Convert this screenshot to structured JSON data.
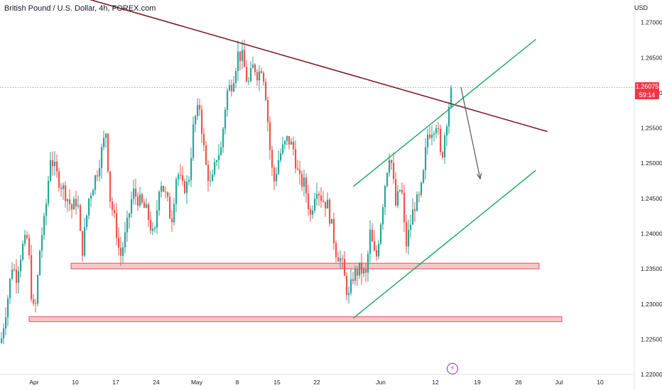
{
  "header": {
    "title": "British Pound / U.S. Dollar, 4h, FOREX.com",
    "currency": "USD"
  },
  "price_tag": {
    "price": "1.26075",
    "countdown": "59:14"
  },
  "events": {
    "icon": "lightning-bolt-icon",
    "glyph": "⚡"
  },
  "colors": {
    "up": "#26a69a",
    "down": "#ef5350",
    "trendline": "#7b1f2a",
    "channel": "#22ab6a",
    "support_fill": "#f7b3b8",
    "support_stroke": "#e5505c",
    "price_tag": "#f23645",
    "arrow": "#555555",
    "bolt": "#9c27b0"
  },
  "chart_data": {
    "type": "candlestick",
    "title": "British Pound / U.S. Dollar, 4h, FOREX.com",
    "y_unit": "USD",
    "ylim": [
      1.22,
      1.2725
    ],
    "y_ticks": [
      "1.27000",
      "1.26500",
      "1.26000",
      "1.25500",
      "1.25000",
      "1.24500",
      "1.24000",
      "1.23500",
      "1.23000",
      "1.22500",
      "1.22000"
    ],
    "x_ticks": [
      "Apr",
      "10",
      "17",
      "24",
      "May",
      "8",
      "15",
      "22",
      "Jun",
      "12",
      "19",
      "26",
      "Jul",
      "10"
    ],
    "current_price": 1.26075,
    "anchors": [
      [
        0,
        1.2245
      ],
      [
        10,
        1.231
      ],
      [
        16,
        1.2355
      ],
      [
        22,
        1.234
      ],
      [
        30,
        1.238
      ],
      [
        38,
        1.2395
      ],
      [
        44,
        1.23
      ],
      [
        48,
        1.2285
      ],
      [
        56,
        1.239
      ],
      [
        62,
        1.242
      ],
      [
        70,
        1.251
      ],
      [
        80,
        1.248
      ],
      [
        92,
        1.2455
      ],
      [
        100,
        1.2435
      ],
      [
        108,
        1.245
      ],
      [
        114,
        1.237
      ],
      [
        124,
        1.245
      ],
      [
        136,
        1.249
      ],
      [
        148,
        1.2545
      ],
      [
        154,
        1.245
      ],
      [
        162,
        1.241
      ],
      [
        168,
        1.2365
      ],
      [
        176,
        1.24
      ],
      [
        186,
        1.246
      ],
      [
        196,
        1.2445
      ],
      [
        206,
        1.243
      ],
      [
        216,
        1.239
      ],
      [
        224,
        1.248
      ],
      [
        236,
        1.244
      ],
      [
        240,
        1.2415
      ],
      [
        248,
        1.249
      ],
      [
        256,
        1.2465
      ],
      [
        264,
        1.247
      ],
      [
        272,
        1.256
      ],
      [
        280,
        1.258
      ],
      [
        288,
        1.25
      ],
      [
        296,
        1.2465
      ],
      [
        304,
        1.251
      ],
      [
        310,
        1.252
      ],
      [
        318,
        1.26
      ],
      [
        326,
        1.2615
      ],
      [
        334,
        1.2655
      ],
      [
        340,
        1.265
      ],
      [
        348,
        1.261
      ],
      [
        356,
        1.264
      ],
      [
        362,
        1.2625
      ],
      [
        368,
        1.264
      ],
      [
        374,
        1.259
      ],
      [
        378,
        1.253
      ],
      [
        384,
        1.247
      ],
      [
        392,
        1.251
      ],
      [
        404,
        1.2535
      ],
      [
        412,
        1.252
      ],
      [
        420,
        1.2475
      ],
      [
        428,
        1.247
      ],
      [
        436,
        1.2425
      ],
      [
        444,
        1.247
      ],
      [
        452,
        1.245
      ],
      [
        460,
        1.244
      ],
      [
        466,
        1.241
      ],
      [
        472,
        1.2375
      ],
      [
        480,
        1.236
      ],
      [
        486,
        1.2325
      ],
      [
        490,
        1.231
      ],
      [
        496,
        1.234
      ],
      [
        506,
        1.235
      ],
      [
        514,
        1.234
      ],
      [
        520,
        1.24
      ],
      [
        528,
        1.236
      ],
      [
        534,
        1.241
      ],
      [
        542,
        1.248
      ],
      [
        548,
        1.252
      ],
      [
        556,
        1.244
      ],
      [
        564,
        1.247
      ],
      [
        570,
        1.238
      ],
      [
        576,
        1.241
      ],
      [
        582,
        1.244
      ],
      [
        590,
        1.245
      ],
      [
        596,
        1.249
      ],
      [
        600,
        1.254
      ],
      [
        608,
        1.255
      ],
      [
        614,
        1.256
      ],
      [
        620,
        1.25
      ],
      [
        626,
        1.255
      ],
      [
        632,
        1.259
      ],
      [
        636,
        1.2605
      ]
    ],
    "trendline": {
      "from": [
        "2023-03-28",
        1.2775
      ],
      "to": [
        "2023-06-24",
        1.2545
      ]
    },
    "channel_upper": {
      "from": [
        "2023-05-26",
        1.2467
      ],
      "to": [
        "2023-06-22",
        1.2676
      ]
    },
    "channel_lower": {
      "from": [
        "2023-05-26",
        1.228
      ],
      "to": [
        "2023-06-22",
        1.249
      ]
    },
    "support_zones": [
      {
        "from_price": 1.235,
        "to_price": 1.2358
      },
      {
        "from_price": 1.2275,
        "to_price": 1.2282
      }
    ],
    "projection_arrow": {
      "from_price": 1.2608,
      "to_price": 1.2478
    },
    "grid": false,
    "legend": "none"
  }
}
